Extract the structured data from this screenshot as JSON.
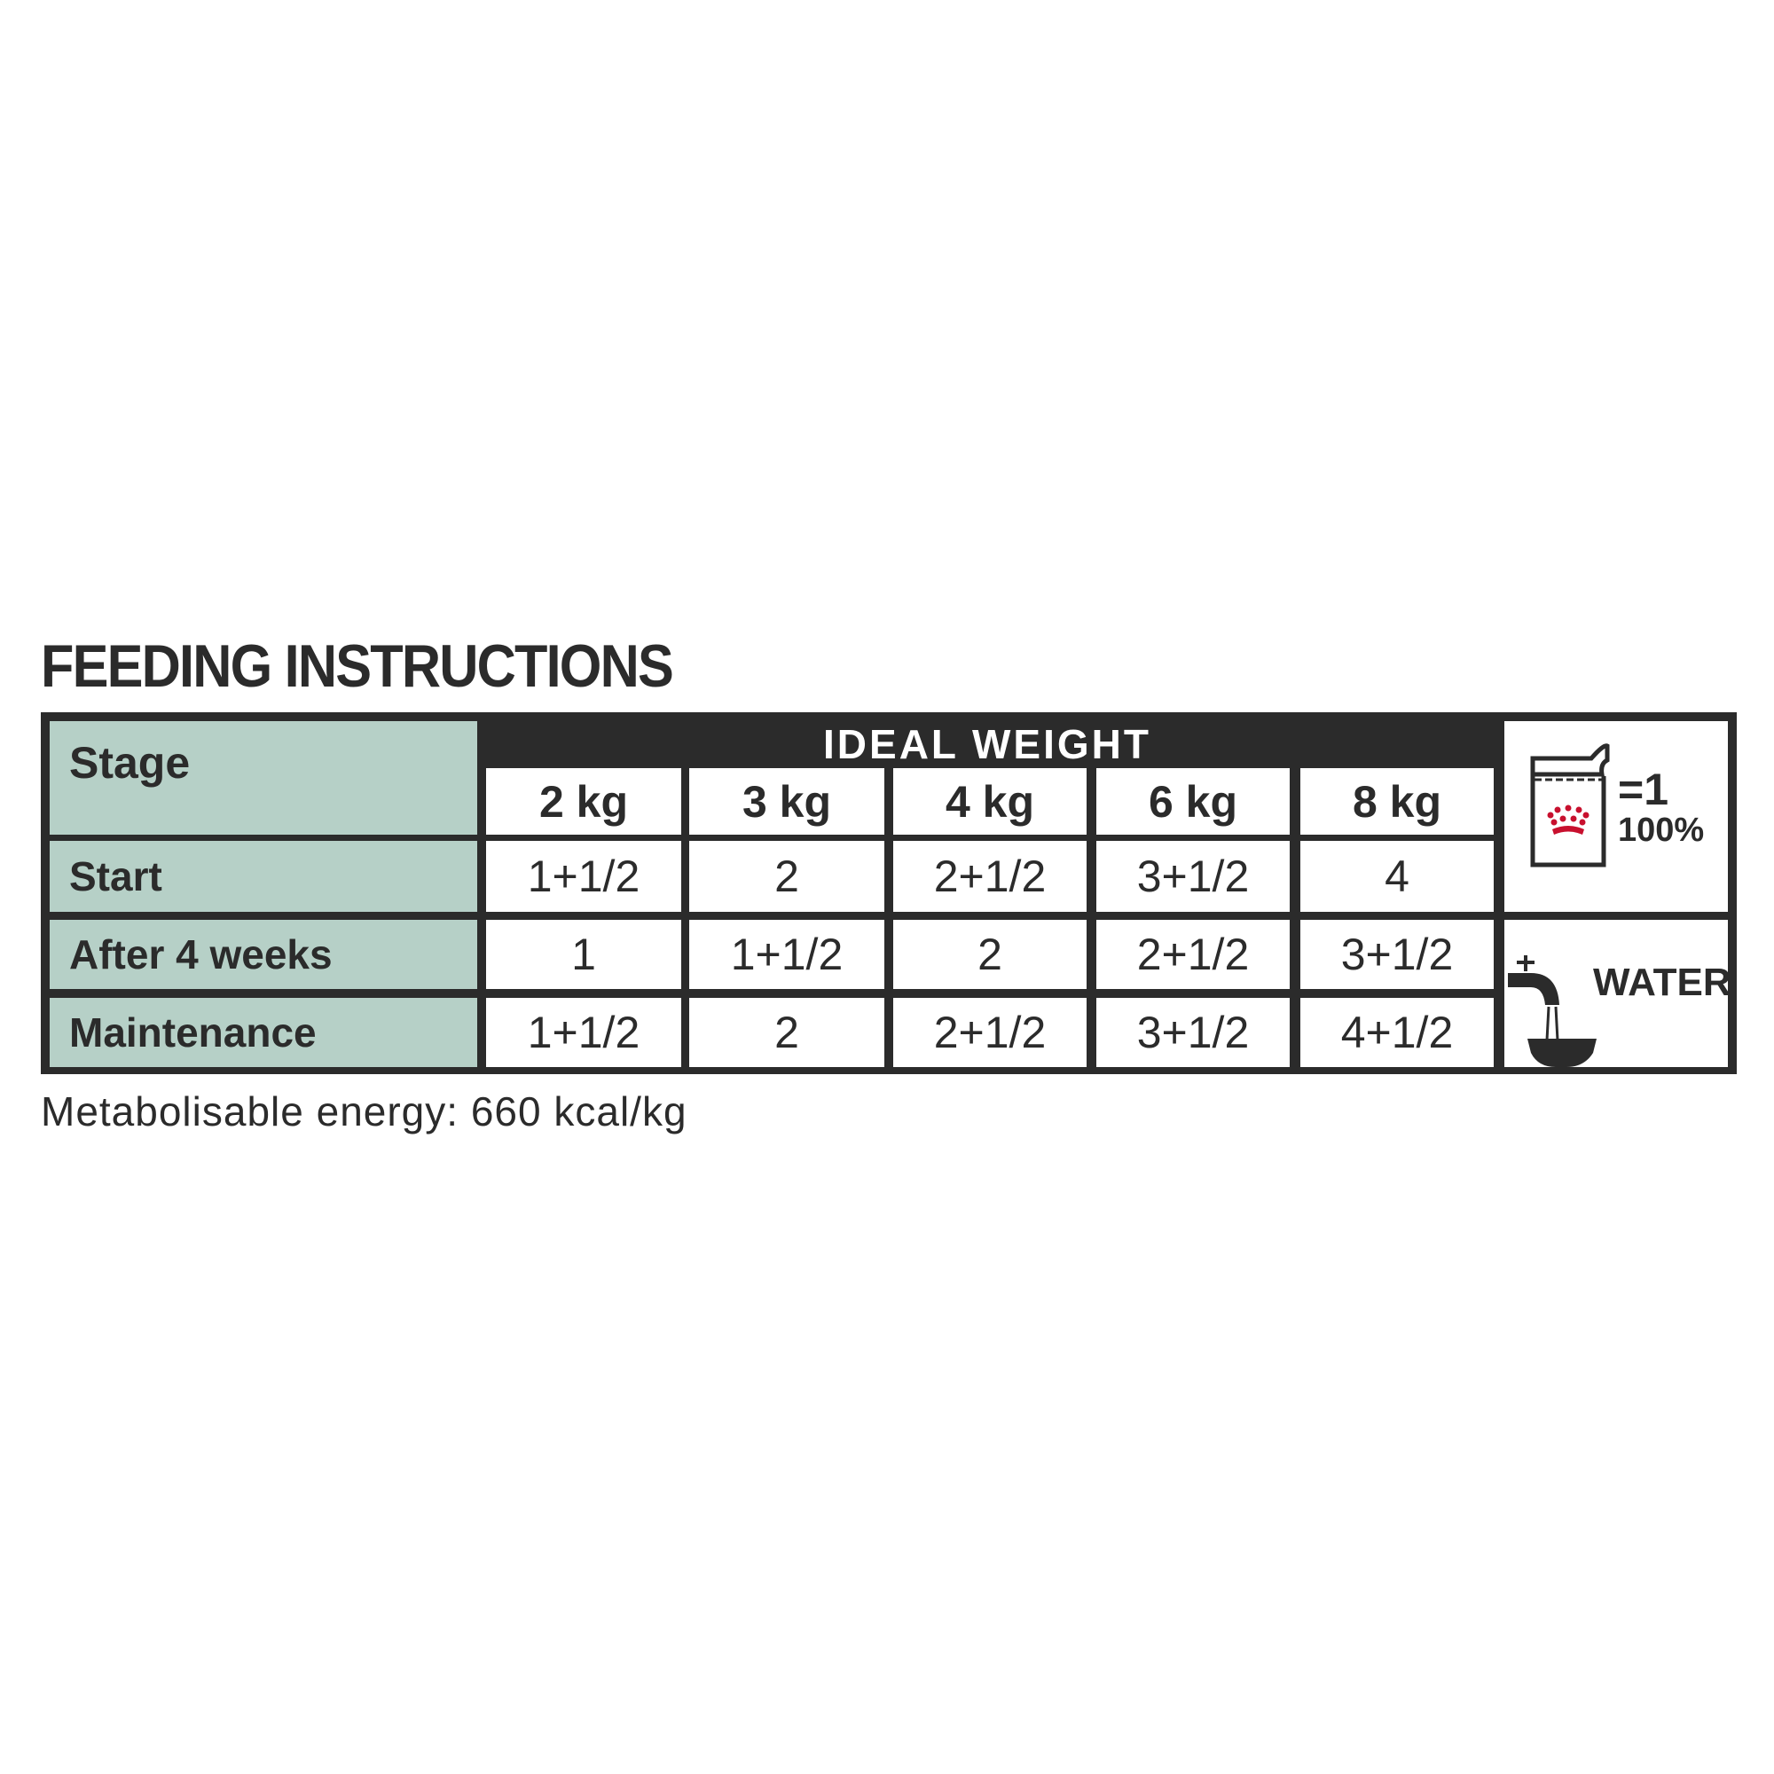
{
  "title": "FEEDING INSTRUCTIONS",
  "table": {
    "stage_header": "Stage",
    "group_header": "IDEAL WEIGHT",
    "weights": [
      "2 kg",
      "3 kg",
      "4 kg",
      "6 kg",
      "8 kg"
    ],
    "rows": [
      {
        "stage": "Start",
        "values": [
          "1+1/2",
          "2",
          "2+1/2",
          "3+1/2",
          "4"
        ]
      },
      {
        "stage": "After 4 weeks",
        "values": [
          "1",
          "1+1/2",
          "2",
          "2+1/2",
          "3+1/2"
        ]
      },
      {
        "stage": "Maintenance",
        "values": [
          "1+1/2",
          "2",
          "2+1/2",
          "3+1/2",
          "4+1/2"
        ]
      }
    ]
  },
  "pouch_legend": {
    "icon": "pouch-icon",
    "equals": "=1",
    "percent": "100%",
    "crown_color": "#c8102e"
  },
  "water_legend": {
    "icon": "tap-bowl-icon",
    "label": "WATER"
  },
  "footer": {
    "energy": "Metabolisable energy: 660 kcal/kg"
  },
  "colors": {
    "stage_bg": "#b6d0c7",
    "border": "#2b2b2b"
  }
}
